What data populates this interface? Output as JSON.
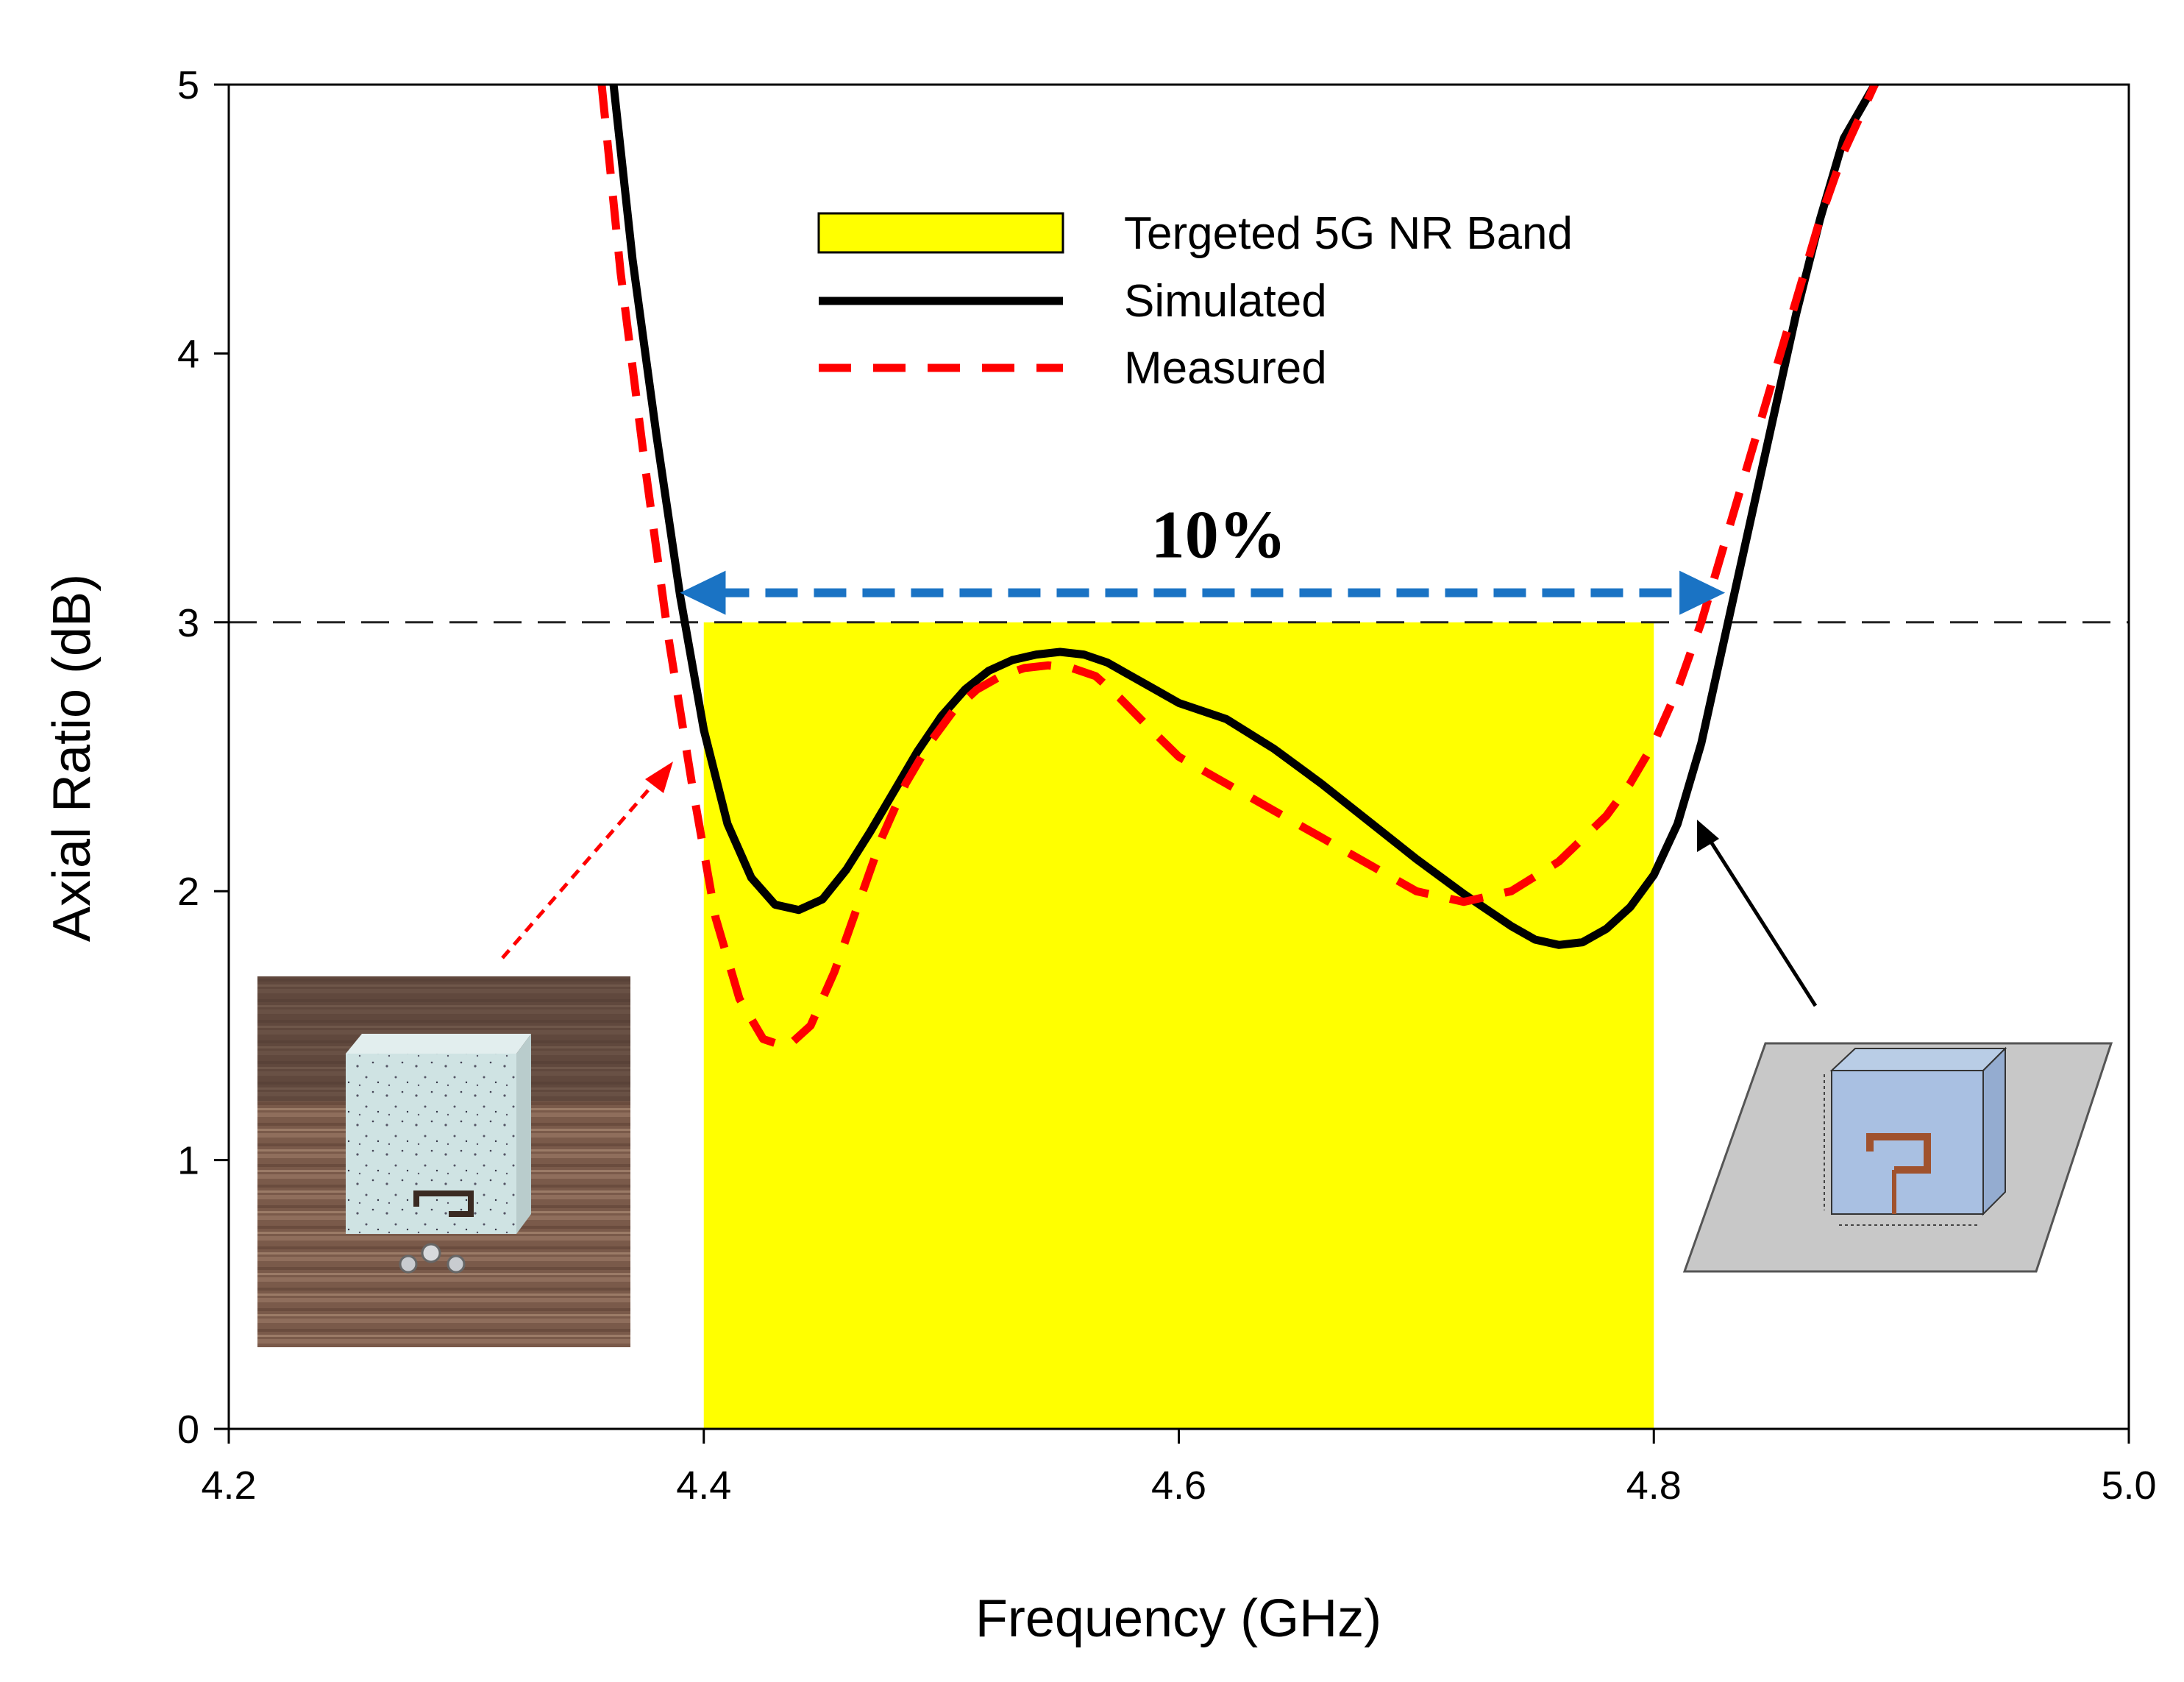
{
  "chart_data": {
    "type": "line",
    "xlabel": "Frequency (GHz)",
    "ylabel": "Axial Ratio (dB)",
    "xlim": [
      4.2,
      5.0
    ],
    "ylim": [
      0,
      5
    ],
    "xticks": [
      "4.2",
      "4.4",
      "4.6",
      "4.8",
      "5.0"
    ],
    "yticks": [
      "0",
      "1",
      "2",
      "3",
      "4",
      "5"
    ],
    "band": {
      "name": "Tergeted 5G NR Band",
      "x_start": 4.4,
      "x_end": 4.8,
      "y_top": 3,
      "color": "#ffff00"
    },
    "threshold": {
      "y": 3
    },
    "series": [
      {
        "name": "Simulated",
        "color": "#000000",
        "style": "solid",
        "x": [
          4.362,
          4.37,
          4.38,
          4.39,
          4.4,
          4.41,
          4.42,
          4.43,
          4.44,
          4.45,
          4.46,
          4.47,
          4.48,
          4.49,
          4.5,
          4.51,
          4.52,
          4.53,
          4.54,
          4.55,
          4.56,
          4.57,
          4.58,
          4.59,
          4.6,
          4.62,
          4.64,
          4.66,
          4.68,
          4.7,
          4.72,
          4.74,
          4.75,
          4.76,
          4.77,
          4.78,
          4.79,
          4.8,
          4.81,
          4.82,
          4.83,
          4.84,
          4.85,
          4.86,
          4.87,
          4.88,
          4.893
        ],
        "y": [
          5.0,
          4.35,
          3.7,
          3.1,
          2.6,
          2.25,
          2.05,
          1.95,
          1.93,
          1.97,
          2.08,
          2.22,
          2.37,
          2.52,
          2.65,
          2.75,
          2.82,
          2.86,
          2.88,
          2.89,
          2.88,
          2.85,
          2.8,
          2.75,
          2.7,
          2.64,
          2.53,
          2.4,
          2.26,
          2.12,
          1.99,
          1.87,
          1.82,
          1.8,
          1.81,
          1.86,
          1.94,
          2.06,
          2.25,
          2.55,
          2.95,
          3.35,
          3.75,
          4.15,
          4.5,
          4.8,
          5.0
        ]
      },
      {
        "name": "Measured",
        "color": "#ff0000",
        "style": "dashed",
        "x": [
          4.357,
          4.365,
          4.375,
          4.385,
          4.395,
          4.405,
          4.415,
          4.425,
          4.435,
          4.445,
          4.455,
          4.465,
          4.475,
          4.485,
          4.495,
          4.505,
          4.515,
          4.525,
          4.535,
          4.545,
          4.555,
          4.565,
          4.575,
          4.585,
          4.6,
          4.62,
          4.64,
          4.66,
          4.68,
          4.7,
          4.72,
          4.74,
          4.76,
          4.78,
          4.79,
          4.8,
          4.81,
          4.82,
          4.83,
          4.84,
          4.85,
          4.86,
          4.87,
          4.88,
          4.893
        ],
        "y": [
          5.0,
          4.3,
          3.6,
          2.95,
          2.4,
          1.9,
          1.6,
          1.45,
          1.42,
          1.5,
          1.7,
          1.95,
          2.2,
          2.4,
          2.55,
          2.67,
          2.75,
          2.8,
          2.83,
          2.84,
          2.83,
          2.8,
          2.72,
          2.63,
          2.5,
          2.4,
          2.3,
          2.2,
          2.1,
          2.0,
          1.96,
          2.0,
          2.11,
          2.28,
          2.4,
          2.55,
          2.75,
          3.0,
          3.3,
          3.6,
          3.9,
          4.2,
          4.5,
          4.75,
          5.0
        ]
      }
    ],
    "bandwidth_arrow": {
      "label": "10%",
      "x_start": 4.39,
      "x_end": 4.83,
      "y": 3.11,
      "color": "#1a73c4"
    }
  }
}
